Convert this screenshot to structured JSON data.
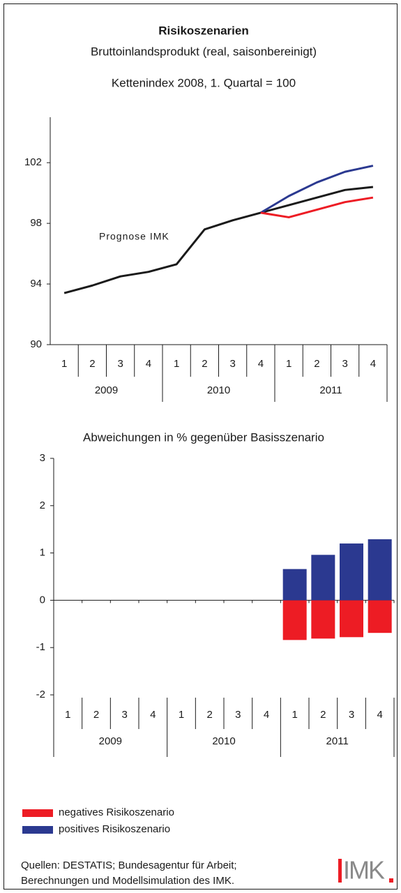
{
  "chart_data": [
    {
      "type": "line",
      "title": "Risikoszenarien",
      "subtitle": "Bruttoinlandsprodukt (real, saisonbereinigt)",
      "subtitle2": "Kettenindex 2008, 1. Quartal = 100",
      "annotation": "Prognose IMK",
      "categories": [
        "1",
        "2",
        "3",
        "4",
        "1",
        "2",
        "3",
        "4",
        "1",
        "2",
        "3",
        "4"
      ],
      "groups": [
        "2009",
        "2010",
        "2011"
      ],
      "series": [
        {
          "color": "#1a1a1a",
          "values": [
            93.4,
            93.9,
            94.5,
            94.8,
            95.3,
            97.6,
            98.2,
            98.7,
            99.2,
            99.7,
            100.2,
            100.4
          ]
        },
        {
          "color": "#2b3990",
          "values": [
            null,
            null,
            null,
            null,
            null,
            null,
            null,
            98.7,
            99.8,
            100.7,
            101.4,
            101.8
          ]
        },
        {
          "color": "#ed1c24",
          "values": [
            null,
            null,
            null,
            null,
            null,
            null,
            null,
            98.7,
            98.4,
            98.9,
            99.4,
            99.7
          ]
        }
      ],
      "ylim": [
        90,
        105
      ],
      "yticks": [
        90,
        94,
        98,
        102
      ]
    },
    {
      "type": "bar",
      "title": "Abweichungen in % gegenüber Basisszenario",
      "categories": [
        "1",
        "2",
        "3",
        "4",
        "1",
        "2",
        "3",
        "4",
        "1",
        "2",
        "3",
        "4"
      ],
      "groups": [
        "2009",
        "2010",
        "2011"
      ],
      "series": [
        {
          "name": "negatives Risikoszenario",
          "color": "#ed1c24",
          "values": [
            null,
            null,
            null,
            null,
            null,
            null,
            null,
            null,
            -0.84,
            -0.81,
            -0.78,
            -0.69
          ]
        },
        {
          "name": "positives Risikoszenario",
          "color": "#2b3990",
          "values": [
            null,
            null,
            null,
            null,
            null,
            null,
            null,
            null,
            0.66,
            0.96,
            1.2,
            1.29
          ]
        }
      ],
      "ylim": [
        -2,
        3
      ],
      "yticks": [
        -2,
        -1,
        0,
        1,
        2,
        3
      ]
    }
  ],
  "source": [
    "Quellen: DESTATIS; Bundesagentur für Arbeit;",
    "Berechnungen und Modellsimulation des IMK."
  ],
  "logo": "IMK"
}
